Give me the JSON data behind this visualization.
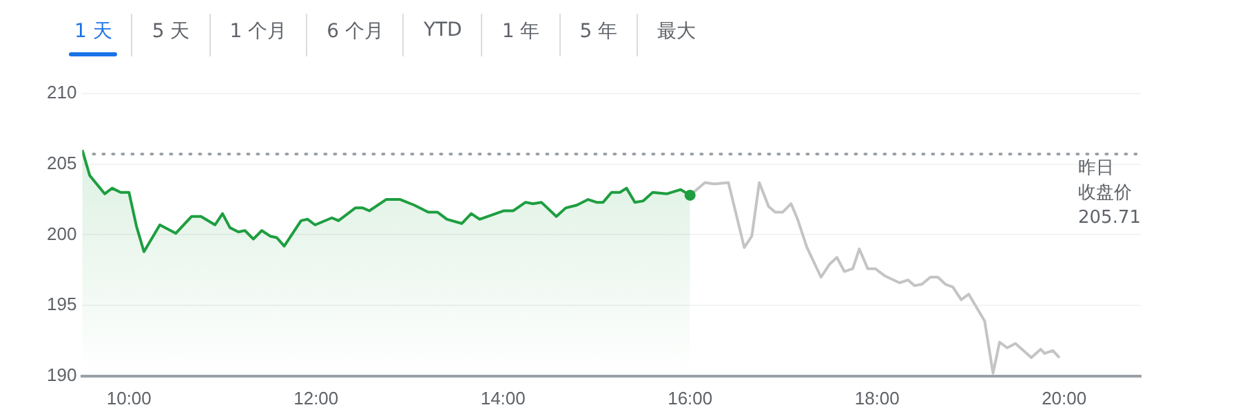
{
  "chart_data": {
    "type": "line",
    "annotations": [
      "1 天",
      "5 天",
      "1 个月",
      "6 个月",
      "YTD",
      "1 年",
      "5 年",
      "最大"
    ],
    "xlim": [
      9.5,
      20.82
    ],
    "xticks": [
      {
        "value": 10,
        "label": "10:00"
      },
      {
        "value": 12,
        "label": "12:00"
      },
      {
        "value": 14,
        "label": "14:00"
      },
      {
        "value": 16,
        "label": "16:00"
      },
      {
        "value": 18,
        "label": "18:00"
      },
      {
        "value": 20,
        "label": "20:00"
      }
    ],
    "ylim": [
      190,
      210
    ],
    "yticks": [
      190,
      195,
      200,
      205,
      210
    ],
    "grid": "y",
    "ref_lines": [
      {
        "axis": "y",
        "value": 205.71,
        "label": "昨日收盘价\n205.71",
        "color": "#9aa0a6",
        "line_style": "dotted"
      }
    ],
    "series": [
      {
        "type": "area",
        "color": "#1e9e40",
        "x": [
          9.5,
          9.58,
          9.74,
          9.82,
          9.91,
          10.0,
          10.08,
          10.16,
          10.33,
          10.5,
          10.67,
          10.77,
          10.92,
          11.0,
          11.08,
          11.17,
          11.24,
          11.33,
          11.42,
          11.51,
          11.58,
          11.66,
          11.84,
          11.91,
          11.99,
          12.17,
          12.24,
          12.42,
          12.5,
          12.57,
          12.75,
          12.9,
          13.05,
          13.2,
          13.3,
          13.4,
          13.56,
          13.66,
          13.75,
          13.88,
          14.01,
          14.11,
          14.24,
          14.32,
          14.41,
          14.57,
          14.67,
          14.79,
          14.91,
          15.0,
          15.07,
          15.16,
          15.25,
          15.32,
          15.41,
          15.5,
          15.6,
          15.75,
          15.9,
          16.0
        ],
        "values": [
          206.0,
          204.2,
          202.9,
          203.3,
          203.0,
          203.0,
          200.6,
          198.8,
          200.7,
          200.1,
          201.3,
          201.3,
          200.7,
          201.5,
          200.5,
          200.2,
          200.3,
          199.7,
          200.3,
          199.9,
          199.8,
          199.2,
          201.0,
          201.1,
          200.7,
          201.2,
          201.0,
          201.9,
          201.9,
          201.7,
          202.5,
          202.5,
          202.1,
          201.6,
          201.6,
          201.1,
          200.8,
          201.5,
          201.1,
          201.4,
          201.7,
          201.7,
          202.3,
          202.2,
          202.3,
          201.3,
          201.9,
          202.1,
          202.5,
          202.3,
          202.3,
          203.0,
          203.0,
          203.3,
          202.3,
          202.4,
          203.0,
          202.9,
          203.2,
          202.8
        ]
      },
      {
        "type": "line",
        "color": "#c4c4c4",
        "x": [
          16.0,
          16.16,
          16.26,
          16.41,
          16.58,
          16.66,
          16.74,
          16.84,
          16.91,
          16.99,
          17.08,
          17.15,
          17.25,
          17.4,
          17.49,
          17.57,
          17.65,
          17.74,
          17.81,
          17.9,
          17.98,
          18.08,
          18.24,
          18.33,
          18.4,
          18.48,
          18.57,
          18.65,
          18.73,
          18.81,
          18.9,
          18.98,
          19.15,
          19.24,
          19.31,
          19.39,
          19.48,
          19.65,
          19.75,
          19.79,
          19.88,
          19.95
        ],
        "values": [
          202.8,
          203.7,
          203.6,
          203.7,
          199.1,
          199.9,
          203.7,
          202.0,
          201.6,
          201.6,
          202.2,
          201.1,
          199.1,
          197.0,
          197.9,
          198.4,
          197.4,
          197.6,
          199.0,
          197.6,
          197.6,
          197.1,
          196.6,
          196.8,
          196.4,
          196.5,
          197.0,
          197.0,
          196.5,
          196.3,
          195.4,
          195.8,
          193.9,
          190.2,
          192.4,
          192.0,
          192.3,
          191.3,
          191.9,
          191.6,
          191.8,
          191.3
        ]
      }
    ]
  }
}
